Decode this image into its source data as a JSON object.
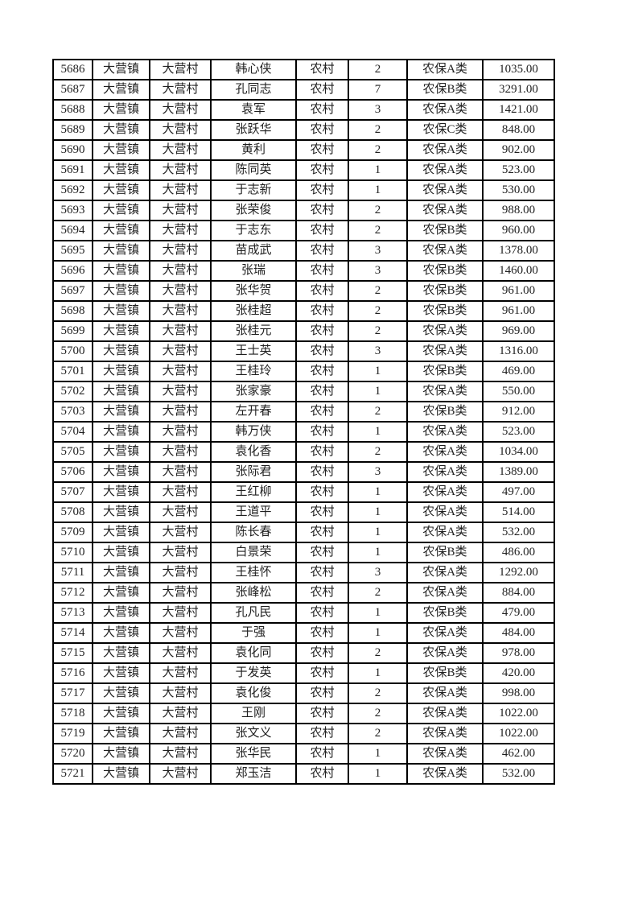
{
  "page": {
    "background": "#ffffff",
    "text_color": "#1f1f1f",
    "border_color": "#000000"
  },
  "table": {
    "column_keys": [
      "serial",
      "town",
      "village",
      "name",
      "household-type",
      "person-count",
      "insurance-category",
      "amount"
    ],
    "rows": [
      [
        "5686",
        "大营镇",
        "大营村",
        "韩心侠",
        "农村",
        "2",
        "农保A类",
        "1035.00"
      ],
      [
        "5687",
        "大营镇",
        "大营村",
        "孔同志",
        "农村",
        "7",
        "农保B类",
        "3291.00"
      ],
      [
        "5688",
        "大营镇",
        "大营村",
        "袁军",
        "农村",
        "3",
        "农保A类",
        "1421.00"
      ],
      [
        "5689",
        "大营镇",
        "大营村",
        "张跃华",
        "农村",
        "2",
        "农保C类",
        "848.00"
      ],
      [
        "5690",
        "大营镇",
        "大营村",
        "黄利",
        "农村",
        "2",
        "农保A类",
        "902.00"
      ],
      [
        "5691",
        "大营镇",
        "大营村",
        "陈同英",
        "农村",
        "1",
        "农保A类",
        "523.00"
      ],
      [
        "5692",
        "大营镇",
        "大营村",
        "于志新",
        "农村",
        "1",
        "农保A类",
        "530.00"
      ],
      [
        "5693",
        "大营镇",
        "大营村",
        "张荣俊",
        "农村",
        "2",
        "农保A类",
        "988.00"
      ],
      [
        "5694",
        "大营镇",
        "大营村",
        "于志东",
        "农村",
        "2",
        "农保B类",
        "960.00"
      ],
      [
        "5695",
        "大营镇",
        "大营村",
        "苗成武",
        "农村",
        "3",
        "农保A类",
        "1378.00"
      ],
      [
        "5696",
        "大营镇",
        "大营村",
        "张瑞",
        "农村",
        "3",
        "农保B类",
        "1460.00"
      ],
      [
        "5697",
        "大营镇",
        "大营村",
        "张华贺",
        "农村",
        "2",
        "农保B类",
        "961.00"
      ],
      [
        "5698",
        "大营镇",
        "大营村",
        "张桂超",
        "农村",
        "2",
        "农保B类",
        "961.00"
      ],
      [
        "5699",
        "大营镇",
        "大营村",
        "张桂元",
        "农村",
        "2",
        "农保A类",
        "969.00"
      ],
      [
        "5700",
        "大营镇",
        "大营村",
        "王士英",
        "农村",
        "3",
        "农保A类",
        "1316.00"
      ],
      [
        "5701",
        "大营镇",
        "大营村",
        "王桂玲",
        "农村",
        "1",
        "农保B类",
        "469.00"
      ],
      [
        "5702",
        "大营镇",
        "大营村",
        "张家豪",
        "农村",
        "1",
        "农保A类",
        "550.00"
      ],
      [
        "5703",
        "大营镇",
        "大营村",
        "左开春",
        "农村",
        "2",
        "农保B类",
        "912.00"
      ],
      [
        "5704",
        "大营镇",
        "大营村",
        "韩万侠",
        "农村",
        "1",
        "农保A类",
        "523.00"
      ],
      [
        "5705",
        "大营镇",
        "大营村",
        "袁化香",
        "农村",
        "2",
        "农保A类",
        "1034.00"
      ],
      [
        "5706",
        "大营镇",
        "大营村",
        "张际君",
        "农村",
        "3",
        "农保A类",
        "1389.00"
      ],
      [
        "5707",
        "大营镇",
        "大营村",
        "王红柳",
        "农村",
        "1",
        "农保A类",
        "497.00"
      ],
      [
        "5708",
        "大营镇",
        "大营村",
        "王道平",
        "农村",
        "1",
        "农保A类",
        "514.00"
      ],
      [
        "5709",
        "大营镇",
        "大营村",
        "陈长春",
        "农村",
        "1",
        "农保A类",
        "532.00"
      ],
      [
        "5710",
        "大营镇",
        "大营村",
        "白景荣",
        "农村",
        "1",
        "农保B类",
        "486.00"
      ],
      [
        "5711",
        "大营镇",
        "大营村",
        "王桂怀",
        "农村",
        "3",
        "农保A类",
        "1292.00"
      ],
      [
        "5712",
        "大营镇",
        "大营村",
        "张峰松",
        "农村",
        "2",
        "农保A类",
        "884.00"
      ],
      [
        "5713",
        "大营镇",
        "大营村",
        "孔凡民",
        "农村",
        "1",
        "农保B类",
        "479.00"
      ],
      [
        "5714",
        "大营镇",
        "大营村",
        "于强",
        "农村",
        "1",
        "农保A类",
        "484.00"
      ],
      [
        "5715",
        "大营镇",
        "大营村",
        "袁化同",
        "农村",
        "2",
        "农保A类",
        "978.00"
      ],
      [
        "5716",
        "大营镇",
        "大营村",
        "于发英",
        "农村",
        "1",
        "农保B类",
        "420.00"
      ],
      [
        "5717",
        "大营镇",
        "大营村",
        "袁化俊",
        "农村",
        "2",
        "农保A类",
        "998.00"
      ],
      [
        "5718",
        "大营镇",
        "大营村",
        "王刚",
        "农村",
        "2",
        "农保A类",
        "1022.00"
      ],
      [
        "5719",
        "大营镇",
        "大营村",
        "张文义",
        "农村",
        "2",
        "农保A类",
        "1022.00"
      ],
      [
        "5720",
        "大营镇",
        "大营村",
        "张华民",
        "农村",
        "1",
        "农保A类",
        "462.00"
      ],
      [
        "5721",
        "大营镇",
        "大营村",
        "郑玉洁",
        "农村",
        "1",
        "农保A类",
        "532.00"
      ]
    ]
  }
}
